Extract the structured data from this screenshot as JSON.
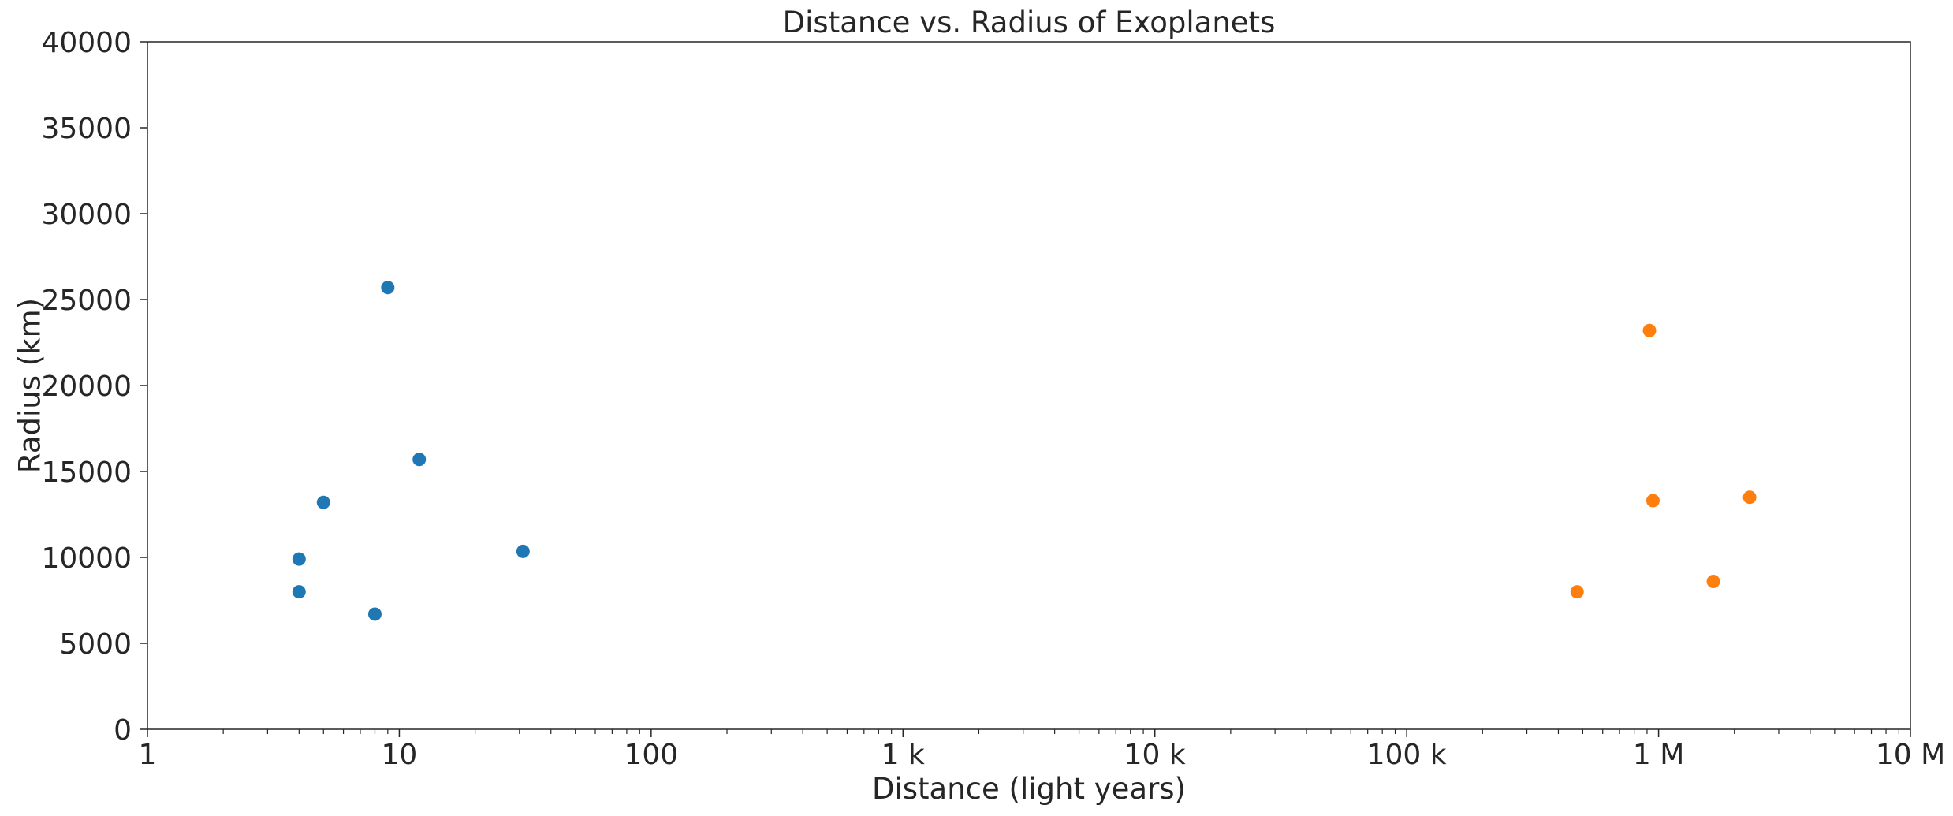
{
  "chart_data": {
    "type": "scatter",
    "title": "Distance vs. Radius of Exoplanets",
    "xlabel": "Distance (light years)",
    "ylabel": "Radius (km)",
    "xscale": "log",
    "xlim": [
      1,
      10000000
    ],
    "ylim": [
      0,
      40000
    ],
    "grid": false,
    "x_ticks": [
      {
        "value": 1,
        "label": "1"
      },
      {
        "value": 10,
        "label": "10"
      },
      {
        "value": 100,
        "label": "100"
      },
      {
        "value": 1000,
        "label": "1 k"
      },
      {
        "value": 10000,
        "label": "10 k"
      },
      {
        "value": 100000,
        "label": "100 k"
      },
      {
        "value": 1000000,
        "label": "1 M"
      },
      {
        "value": 10000000,
        "label": "10 M"
      }
    ],
    "y_ticks": [
      {
        "value": 0,
        "label": "0"
      },
      {
        "value": 5000,
        "label": "5000"
      },
      {
        "value": 10000,
        "label": "10000"
      },
      {
        "value": 15000,
        "label": "15000"
      },
      {
        "value": 20000,
        "label": "20000"
      },
      {
        "value": 25000,
        "label": "25000"
      },
      {
        "value": 30000,
        "label": "30000"
      },
      {
        "value": 35000,
        "label": "35000"
      },
      {
        "value": 40000,
        "label": "40000"
      }
    ],
    "series": [
      {
        "color": "#1f77b4",
        "points": [
          {
            "x": 4,
            "y": 9900
          },
          {
            "x": 4,
            "y": 8000
          },
          {
            "x": 5,
            "y": 13200
          },
          {
            "x": 8,
            "y": 6700
          },
          {
            "x": 9,
            "y": 25700
          },
          {
            "x": 12,
            "y": 15700
          },
          {
            "x": 31,
            "y": 10350
          }
        ]
      },
      {
        "color": "#ff7f0e",
        "points": [
          {
            "x": 475000,
            "y": 8000
          },
          {
            "x": 920000,
            "y": 23200
          },
          {
            "x": 950000,
            "y": 13300
          },
          {
            "x": 1650000,
            "y": 8600
          },
          {
            "x": 2300000,
            "y": 13500
          }
        ]
      }
    ]
  }
}
